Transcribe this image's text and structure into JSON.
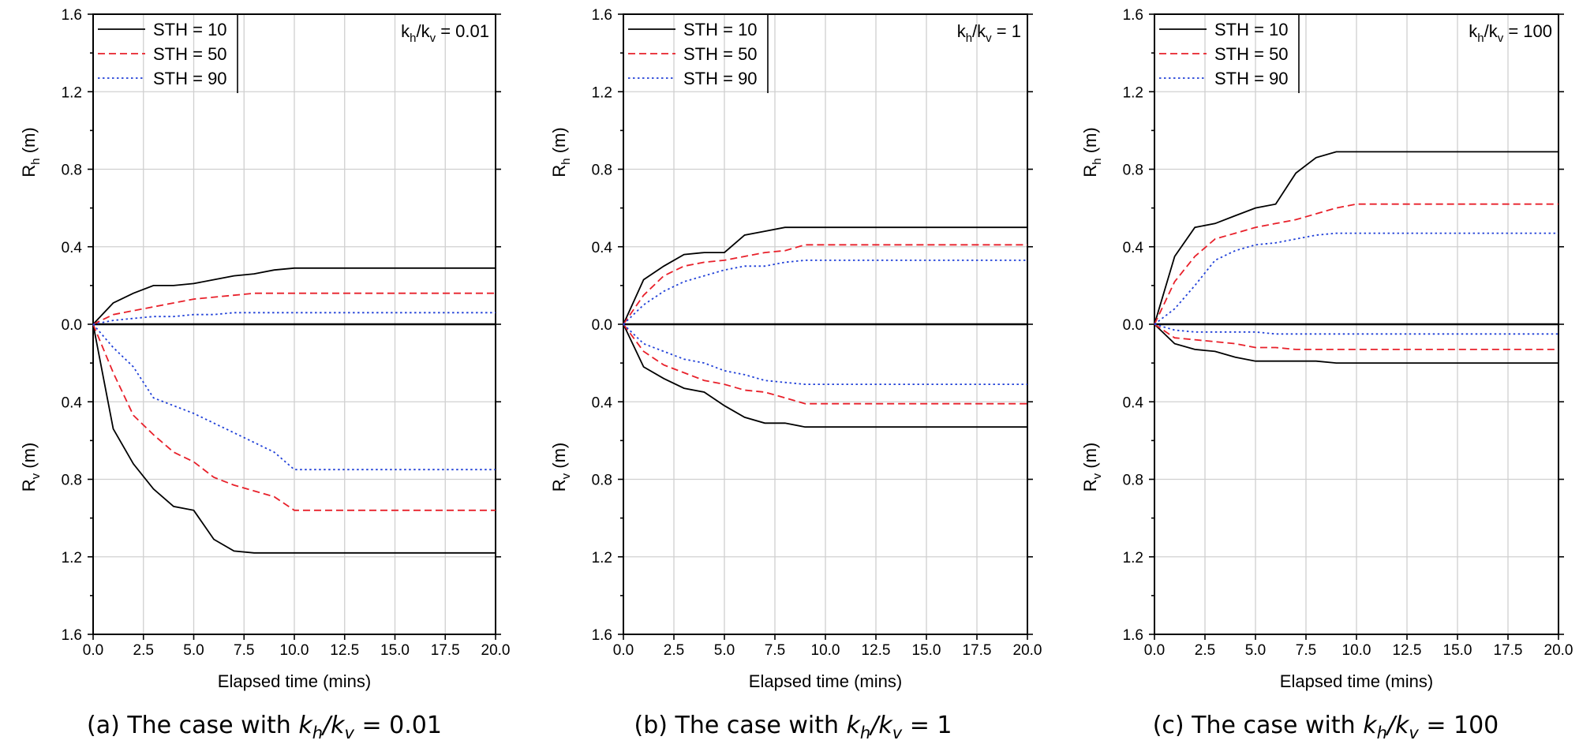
{
  "chart_data": [
    {
      "type": "line",
      "caption_prefix": "(a) The case with ",
      "caption_suffix": " = 0.01",
      "ratio_value": "0.01",
      "xlabel": "Elapsed time (mins)",
      "ylabel_top": "R",
      "ylabel_top_sub": "h",
      "ylabel_bottom": "R",
      "ylabel_bottom_sub": "v",
      "ylabel_unit": " (m)",
      "xlim": [
        0,
        20
      ],
      "xticks": [
        "0.0",
        "2.5",
        "5.0",
        "7.5",
        "10.0",
        "12.5",
        "15.0",
        "17.5",
        "20.0"
      ],
      "ylim_top": [
        0,
        1.6
      ],
      "yticks_top": [
        "0.0",
        "0.4",
        "0.8",
        "1.2",
        "1.6"
      ],
      "ylim_bottom": [
        0,
        1.6
      ],
      "yticks_bottom": [
        "0.4",
        "0.8",
        "1.2",
        "1.6"
      ],
      "grid": true,
      "legend_position": "top-left",
      "series": [
        {
          "name": "STH = 10",
          "color": "#000000",
          "dash": "solid",
          "x_top": [
            0,
            1,
            2,
            3,
            4,
            5,
            6,
            7,
            8,
            9,
            10,
            20
          ],
          "Rh": [
            0,
            0.11,
            0.16,
            0.2,
            0.2,
            0.21,
            0.23,
            0.25,
            0.26,
            0.28,
            0.29,
            0.29
          ],
          "x_bottom": [
            0,
            1,
            2,
            3,
            4,
            5,
            6,
            7,
            8,
            9,
            10,
            20
          ],
          "Rv": [
            0,
            0.54,
            0.72,
            0.85,
            0.94,
            0.96,
            1.11,
            1.17,
            1.18,
            1.18,
            1.18,
            1.18
          ]
        },
        {
          "name": "STH = 50",
          "color": "#e8202a",
          "dash": "dashed",
          "x_top": [
            0,
            1,
            2,
            3,
            4,
            5,
            6,
            7,
            8,
            9,
            10,
            20
          ],
          "Rh": [
            0,
            0.05,
            0.07,
            0.09,
            0.11,
            0.13,
            0.14,
            0.15,
            0.16,
            0.16,
            0.16,
            0.16
          ],
          "x_bottom": [
            0,
            1,
            2,
            3,
            4,
            5,
            6,
            7,
            8,
            9,
            10,
            20
          ],
          "Rv": [
            0,
            0.25,
            0.47,
            0.57,
            0.66,
            0.71,
            0.79,
            0.83,
            0.86,
            0.89,
            0.96,
            0.96
          ]
        },
        {
          "name": "STH = 90",
          "color": "#2040d8",
          "dash": "dotted",
          "x_top": [
            0,
            1,
            2,
            3,
            4,
            5,
            6,
            7,
            8,
            9,
            10,
            20
          ],
          "Rh": [
            0,
            0.02,
            0.03,
            0.04,
            0.04,
            0.05,
            0.05,
            0.06,
            0.06,
            0.06,
            0.06,
            0.06
          ],
          "x_bottom": [
            0,
            1,
            2,
            3,
            4,
            5,
            6,
            7,
            8,
            9,
            10,
            20
          ],
          "Rv": [
            0,
            0.12,
            0.22,
            0.38,
            0.42,
            0.46,
            0.51,
            0.56,
            0.61,
            0.66,
            0.75,
            0.75
          ]
        }
      ]
    },
    {
      "type": "line",
      "caption_prefix": "(b) The case with ",
      "caption_suffix": " = 1",
      "ratio_value": "1",
      "xlabel": "Elapsed time (mins)",
      "ylabel_top": "R",
      "ylabel_top_sub": "h",
      "ylabel_bottom": "R",
      "ylabel_bottom_sub": "v",
      "ylabel_unit": " (m)",
      "xlim": [
        0,
        20
      ],
      "xticks": [
        "0.0",
        "2.5",
        "5.0",
        "7.5",
        "10.0",
        "12.5",
        "15.0",
        "17.5",
        "20.0"
      ],
      "ylim_top": [
        0,
        1.6
      ],
      "yticks_top": [
        "0.0",
        "0.4",
        "0.8",
        "1.2",
        "1.6"
      ],
      "ylim_bottom": [
        0,
        1.6
      ],
      "yticks_bottom": [
        "0.4",
        "0.8",
        "1.2",
        "1.6"
      ],
      "grid": true,
      "legend_position": "top-left",
      "series": [
        {
          "name": "STH = 10",
          "color": "#000000",
          "dash": "solid",
          "x_top": [
            0,
            1,
            2,
            3,
            4,
            5,
            6,
            7,
            8,
            20
          ],
          "Rh": [
            0,
            0.23,
            0.3,
            0.36,
            0.37,
            0.37,
            0.46,
            0.48,
            0.5,
            0.5
          ],
          "x_bottom": [
            0,
            1,
            2,
            3,
            4,
            5,
            6,
            7,
            8,
            9,
            20
          ],
          "Rv": [
            0,
            0.22,
            0.28,
            0.33,
            0.35,
            0.42,
            0.48,
            0.51,
            0.51,
            0.53,
            0.53
          ]
        },
        {
          "name": "STH = 50",
          "color": "#e8202a",
          "dash": "dashed",
          "x_top": [
            0,
            1,
            2,
            3,
            4,
            5,
            6,
            7,
            8,
            9,
            20
          ],
          "Rh": [
            0,
            0.15,
            0.25,
            0.3,
            0.32,
            0.33,
            0.35,
            0.37,
            0.38,
            0.41,
            0.41
          ],
          "x_bottom": [
            0,
            1,
            2,
            3,
            4,
            5,
            6,
            7,
            8,
            9,
            20
          ],
          "Rv": [
            0,
            0.14,
            0.21,
            0.25,
            0.29,
            0.31,
            0.34,
            0.35,
            0.38,
            0.41,
            0.41
          ]
        },
        {
          "name": "STH = 90",
          "color": "#2040d8",
          "dash": "dotted",
          "x_top": [
            0,
            1,
            2,
            3,
            4,
            5,
            6,
            7,
            8,
            9,
            20
          ],
          "Rh": [
            0,
            0.1,
            0.17,
            0.22,
            0.25,
            0.28,
            0.3,
            0.3,
            0.32,
            0.33,
            0.33
          ],
          "x_bottom": [
            0,
            1,
            2,
            3,
            4,
            5,
            6,
            7,
            8,
            9,
            20
          ],
          "Rv": [
            0,
            0.1,
            0.14,
            0.18,
            0.2,
            0.24,
            0.26,
            0.29,
            0.3,
            0.31,
            0.31
          ]
        }
      ]
    },
    {
      "type": "line",
      "caption_prefix": "(c) The case with ",
      "caption_suffix": " = 100",
      "ratio_value": "100",
      "xlabel": "Elapsed time (mins)",
      "ylabel_top": "R",
      "ylabel_top_sub": "h",
      "ylabel_bottom": "R",
      "ylabel_bottom_sub": "v",
      "ylabel_unit": " (m)",
      "xlim": [
        0,
        20
      ],
      "xticks": [
        "0.0",
        "2.5",
        "5.0",
        "7.5",
        "10.0",
        "12.5",
        "15.0",
        "17.5",
        "20.0"
      ],
      "ylim_top": [
        0,
        1.6
      ],
      "yticks_top": [
        "0.0",
        "0.4",
        "0.8",
        "1.2",
        "1.6"
      ],
      "ylim_bottom": [
        0,
        1.6
      ],
      "yticks_bottom": [
        "0.4",
        "0.8",
        "1.2",
        "1.6"
      ],
      "grid": true,
      "legend_position": "top-left",
      "series": [
        {
          "name": "STH = 10",
          "color": "#000000",
          "dash": "solid",
          "x_top": [
            0,
            1,
            2,
            3,
            4,
            5,
            6,
            7,
            8,
            9,
            20
          ],
          "Rh": [
            0,
            0.35,
            0.5,
            0.52,
            0.56,
            0.6,
            0.62,
            0.78,
            0.86,
            0.89,
            0.89
          ],
          "x_bottom": [
            0,
            1,
            2,
            3,
            4,
            5,
            6,
            7,
            8,
            9,
            20
          ],
          "Rv": [
            0,
            0.1,
            0.13,
            0.14,
            0.17,
            0.19,
            0.19,
            0.19,
            0.19,
            0.2,
            0.2
          ]
        },
        {
          "name": "STH = 50",
          "color": "#e8202a",
          "dash": "dashed",
          "x_top": [
            0,
            1,
            2,
            3,
            4,
            5,
            6,
            7,
            8,
            9,
            10,
            20
          ],
          "Rh": [
            0,
            0.22,
            0.35,
            0.44,
            0.47,
            0.5,
            0.52,
            0.54,
            0.57,
            0.6,
            0.62,
            0.62
          ],
          "x_bottom": [
            0,
            1,
            2,
            3,
            4,
            5,
            6,
            7,
            8,
            9,
            20
          ],
          "Rv": [
            0,
            0.07,
            0.08,
            0.09,
            0.1,
            0.12,
            0.12,
            0.13,
            0.13,
            0.13,
            0.13
          ]
        },
        {
          "name": "STH = 90",
          "color": "#2040d8",
          "dash": "dotted",
          "x_top": [
            0,
            1,
            2,
            3,
            4,
            5,
            6,
            7,
            8,
            9,
            20
          ],
          "Rh": [
            0,
            0.08,
            0.2,
            0.33,
            0.38,
            0.41,
            0.42,
            0.44,
            0.46,
            0.47,
            0.47
          ],
          "x_bottom": [
            0,
            1,
            2,
            3,
            4,
            5,
            6,
            7,
            8,
            20
          ],
          "Rv": [
            0,
            0.03,
            0.04,
            0.04,
            0.04,
            0.04,
            0.05,
            0.05,
            0.05,
            0.05
          ]
        }
      ]
    }
  ]
}
